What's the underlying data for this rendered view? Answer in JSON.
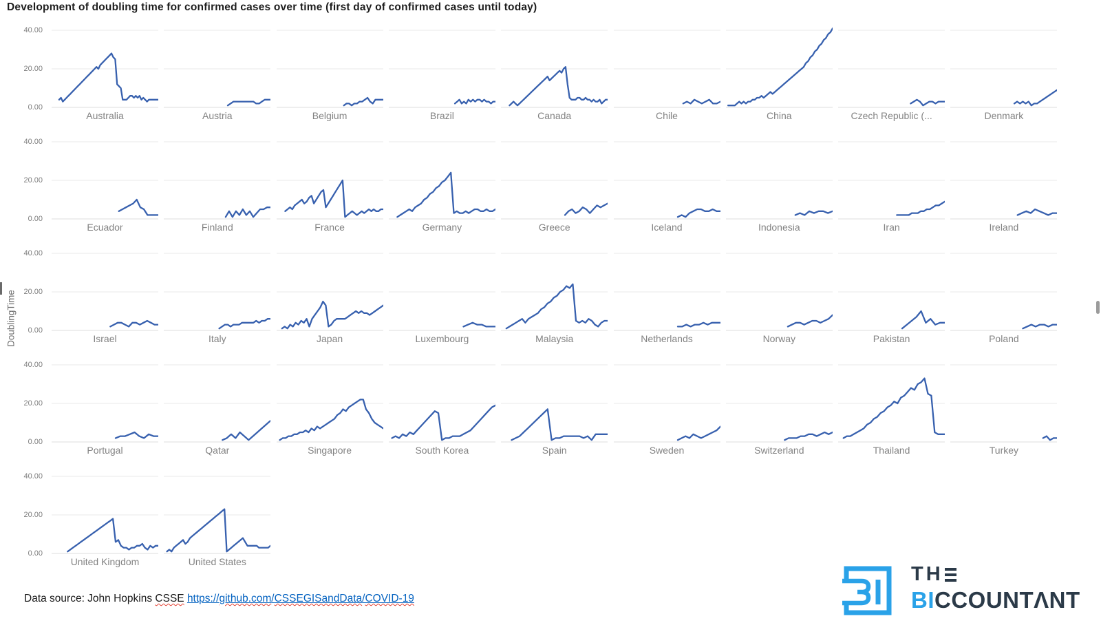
{
  "title": "Development of doubling time for confirmed cases over time (first day of confirmed cases until today)",
  "ylabel": "DoublingTime",
  "footer": {
    "prefix": "Data source: John Hopkins ",
    "csse": "CSSE",
    "scheme": "https://",
    "github": "github.com",
    "slash1": "/",
    "org": "CSSEGISandData",
    "slash2": "/",
    "covid": "COVID-19"
  },
  "logo": {
    "line1_th": "TH",
    "line2_bi": "BI",
    "line2_rest": "CCOUNTΛNT",
    "blue": "#2aa2e8",
    "dark": "#2b3a48"
  },
  "chart_data": {
    "type": "line",
    "title": "Development of doubling time for confirmed cases over time (first day of confirmed cases until today)",
    "ylabel": "DoublingTime",
    "ylim": [
      0,
      40
    ],
    "yticks": [
      "40.00",
      "20.00",
      "0.00"
    ],
    "ytick_values": [
      40,
      20,
      0
    ],
    "grid": true,
    "legend": false,
    "line_color": "#3760ae",
    "columns": 9,
    "panels": [
      {
        "label": "Australia",
        "start": 0.07,
        "values": [
          4,
          5,
          3,
          4,
          5,
          6,
          7,
          8,
          9,
          10,
          11,
          12,
          13,
          14,
          15,
          16,
          17,
          18,
          19,
          20,
          21,
          20,
          22,
          23,
          24,
          25,
          26,
          27,
          28,
          26,
          25,
          12,
          11,
          10,
          4,
          4,
          4,
          5,
          6,
          6,
          5,
          6,
          5,
          6,
          4,
          5,
          4,
          3,
          4,
          4,
          4,
          4,
          4,
          4
        ]
      },
      {
        "label": "Austria",
        "start": 0.6,
        "values": [
          1,
          2,
          3,
          3,
          3,
          3,
          3,
          3,
          3,
          3,
          2,
          2,
          3,
          4,
          4,
          4
        ]
      },
      {
        "label": "Belgium",
        "start": 0.63,
        "values": [
          1,
          2,
          2,
          1,
          2,
          2,
          3,
          3,
          4,
          5,
          3,
          2,
          4,
          4,
          4,
          4
        ]
      },
      {
        "label": "Brazil",
        "start": 0.62,
        "values": [
          2,
          3,
          4,
          2,
          3,
          2,
          4,
          3,
          4,
          3,
          4,
          4,
          3,
          4,
          3,
          3,
          2,
          3,
          3
        ]
      },
      {
        "label": "Canada",
        "start": 0.08,
        "values": [
          1,
          2,
          3,
          2,
          1,
          2,
          3,
          4,
          5,
          6,
          7,
          8,
          9,
          10,
          11,
          12,
          13,
          14,
          15,
          16,
          14,
          15,
          16,
          17,
          18,
          19,
          18,
          20,
          21,
          12,
          5,
          4,
          4,
          4,
          5,
          5,
          4,
          4,
          5,
          4,
          4,
          3,
          4,
          3,
          3,
          4,
          2,
          3,
          4,
          4
        ]
      },
      {
        "label": "Chile",
        "start": 0.65,
        "values": [
          2,
          3,
          2,
          4,
          3,
          2,
          3,
          4,
          2,
          2,
          3
        ]
      },
      {
        "label": "China",
        "start": 0.02,
        "values": [
          1,
          1,
          1,
          1,
          2,
          3,
          2,
          3,
          2,
          3,
          3,
          4,
          4,
          5,
          5,
          6,
          5,
          6,
          7,
          8,
          7,
          8,
          9,
          10,
          11,
          12,
          13,
          14,
          15,
          16,
          17,
          18,
          19,
          20,
          21,
          23,
          24,
          26,
          27,
          29,
          30,
          32,
          33,
          35,
          36,
          38,
          39,
          41
        ]
      },
      {
        "label": "Czech Republic (...",
        "start": 0.68,
        "values": [
          2,
          3,
          4,
          3,
          1,
          2,
          3,
          3,
          2,
          3,
          3,
          3
        ]
      },
      {
        "label": "Denmark",
        "start": 0.6,
        "values": [
          2,
          3,
          2,
          3,
          2,
          3,
          1,
          2,
          2,
          3,
          4,
          5,
          6,
          7,
          8,
          9
        ]
      },
      {
        "label": "Ecuador",
        "start": 0.63,
        "values": [
          4,
          5,
          6,
          7,
          8,
          10,
          6,
          5,
          2,
          2,
          2,
          2
        ]
      },
      {
        "label": "Finland",
        "start": 0.58,
        "values": [
          1,
          4,
          1,
          4,
          2,
          5,
          2,
          4,
          1,
          3,
          5,
          5,
          6,
          6
        ]
      },
      {
        "label": "France",
        "start": 0.08,
        "values": [
          4,
          5,
          6,
          5,
          7,
          8,
          9,
          10,
          8,
          9,
          11,
          12,
          8,
          10,
          12,
          14,
          15,
          6,
          8,
          10,
          12,
          14,
          16,
          18,
          20,
          1,
          2,
          3,
          4,
          3,
          2,
          3,
          4,
          3,
          4,
          5,
          4,
          5,
          4,
          4,
          5,
          5
        ]
      },
      {
        "label": "Germany",
        "start": 0.08,
        "values": [
          1,
          2,
          3,
          4,
          5,
          4,
          6,
          7,
          8,
          10,
          11,
          13,
          14,
          16,
          17,
          19,
          20,
          22,
          24,
          3,
          4,
          3,
          3,
          4,
          3,
          4,
          5,
          5,
          4,
          4,
          5,
          4,
          4,
          5
        ]
      },
      {
        "label": "Greece",
        "start": 0.6,
        "values": [
          2,
          4,
          5,
          3,
          4,
          6,
          5,
          3,
          5,
          7,
          6,
          7,
          8
        ]
      },
      {
        "label": "Iceland",
        "start": 0.6,
        "values": [
          1,
          2,
          1,
          3,
          4,
          5,
          5,
          4,
          4,
          5,
          4,
          4
        ]
      },
      {
        "label": "Indonesia",
        "start": 0.65,
        "values": [
          2,
          3,
          2,
          4,
          3,
          4,
          4,
          3,
          4
        ]
      },
      {
        "label": "Iran",
        "start": 0.55,
        "values": [
          2,
          2,
          2,
          2,
          2,
          3,
          3,
          3,
          4,
          4,
          5,
          5,
          6,
          7,
          7,
          8,
          9
        ]
      },
      {
        "label": "Ireland",
        "start": 0.63,
        "values": [
          2,
          3,
          4,
          3,
          5,
          4,
          3,
          2,
          3,
          3
        ]
      },
      {
        "label": "Israel",
        "start": 0.55,
        "values": [
          2,
          3,
          4,
          4,
          3,
          2,
          4,
          4,
          3,
          4,
          5,
          4,
          3,
          3
        ]
      },
      {
        "label": "Italy",
        "start": 0.52,
        "values": [
          1,
          2,
          3,
          3,
          2,
          3,
          3,
          3,
          4,
          4,
          4,
          4,
          4,
          5,
          4,
          5,
          5,
          6,
          6
        ]
      },
      {
        "label": "Japan",
        "start": 0.05,
        "values": [
          1,
          2,
          1,
          3,
          2,
          4,
          3,
          5,
          4,
          6,
          2,
          6,
          8,
          10,
          12,
          15,
          13,
          2,
          3,
          5,
          6,
          6,
          6,
          6,
          7,
          8,
          9,
          10,
          9,
          10,
          9,
          9,
          8,
          9,
          10,
          11,
          12,
          13
        ]
      },
      {
        "label": "Luxembourg",
        "start": 0.7,
        "values": [
          2,
          3,
          4,
          3,
          3,
          2,
          2,
          2
        ]
      },
      {
        "label": "Malaysia",
        "start": 0.05,
        "values": [
          1,
          2,
          3,
          4,
          5,
          6,
          4,
          6,
          7,
          8,
          9,
          11,
          12,
          14,
          15,
          17,
          18,
          20,
          21,
          23,
          22,
          24,
          5,
          4,
          5,
          4,
          6,
          5,
          3,
          2,
          4,
          5,
          5
        ]
      },
      {
        "label": "Netherlands",
        "start": 0.6,
        "values": [
          2,
          2,
          3,
          2,
          3,
          3,
          4,
          3,
          4,
          4,
          4
        ]
      },
      {
        "label": "Norway",
        "start": 0.58,
        "values": [
          2,
          3,
          4,
          4,
          3,
          4,
          5,
          5,
          4,
          5,
          6,
          8
        ]
      },
      {
        "label": "Pakistan",
        "start": 0.6,
        "values": [
          1,
          3,
          5,
          7,
          10,
          4,
          6,
          3,
          4,
          4
        ]
      },
      {
        "label": "Poland",
        "start": 0.68,
        "values": [
          1,
          2,
          3,
          2,
          3,
          3,
          2,
          3,
          3
        ]
      },
      {
        "label": "Portugal",
        "start": 0.6,
        "values": [
          2,
          3,
          3,
          4,
          5,
          3,
          2,
          4,
          3,
          3
        ]
      },
      {
        "label": "Qatar",
        "start": 0.55,
        "values": [
          1,
          2,
          4,
          2,
          5,
          3,
          1,
          3,
          5,
          7,
          9,
          11
        ]
      },
      {
        "label": "Singapore",
        "start": 0.03,
        "values": [
          1,
          2,
          2,
          3,
          3,
          4,
          4,
          5,
          5,
          6,
          5,
          7,
          6,
          8,
          7,
          8,
          9,
          10,
          11,
          12,
          14,
          15,
          17,
          16,
          18,
          19,
          20,
          21,
          22,
          22,
          17,
          15,
          12,
          10,
          9,
          8,
          7
        ]
      },
      {
        "label": "South Korea",
        "start": 0.03,
        "values": [
          2,
          3,
          2,
          4,
          3,
          5,
          4,
          6,
          8,
          10,
          12,
          14,
          16,
          15,
          1,
          2,
          2,
          3,
          3,
          3,
          4,
          5,
          6,
          8,
          10,
          12,
          14,
          16,
          18,
          19
        ]
      },
      {
        "label": "Spain",
        "start": 0.1,
        "values": [
          1,
          2,
          3,
          5,
          7,
          9,
          11,
          13,
          15,
          17,
          1,
          2,
          2,
          3,
          3,
          3,
          3,
          3,
          2,
          3,
          1,
          4,
          4,
          4,
          4
        ]
      },
      {
        "label": "Sweden",
        "start": 0.6,
        "values": [
          1,
          2,
          3,
          2,
          4,
          3,
          2,
          3,
          4,
          5,
          6,
          8
        ]
      },
      {
        "label": "Switzerland",
        "start": 0.55,
        "values": [
          1,
          2,
          2,
          2,
          3,
          3,
          4,
          4,
          3,
          4,
          5,
          4,
          5
        ]
      },
      {
        "label": "Thailand",
        "start": 0.05,
        "values": [
          2,
          3,
          3,
          4,
          5,
          6,
          7,
          9,
          10,
          12,
          13,
          15,
          16,
          18,
          19,
          21,
          20,
          23,
          24,
          26,
          28,
          27,
          30,
          31,
          33,
          25,
          24,
          5,
          4,
          4,
          4
        ]
      },
      {
        "label": "Turkey",
        "start": 0.87,
        "values": [
          2,
          3,
          1,
          2,
          2
        ]
      },
      {
        "label": "United Kingdom",
        "start": 0.15,
        "values": [
          1,
          2,
          3,
          4,
          5,
          6,
          7,
          8,
          9,
          10,
          11,
          12,
          13,
          14,
          15,
          16,
          17,
          18,
          6,
          7,
          4,
          3,
          3,
          2,
          3,
          3,
          4,
          4,
          5,
          3,
          2,
          4,
          3,
          4,
          4
        ]
      },
      {
        "label": "United States",
        "start": 0.03,
        "values": [
          1,
          2,
          1,
          3,
          4,
          5,
          6,
          7,
          5,
          6,
          8,
          9,
          10,
          11,
          12,
          13,
          14,
          15,
          16,
          17,
          18,
          19,
          20,
          21,
          22,
          23,
          1,
          2,
          3,
          4,
          5,
          6,
          7,
          8,
          6,
          4,
          4,
          4,
          4,
          4,
          3,
          3,
          3,
          3,
          3,
          4
        ]
      }
    ]
  }
}
